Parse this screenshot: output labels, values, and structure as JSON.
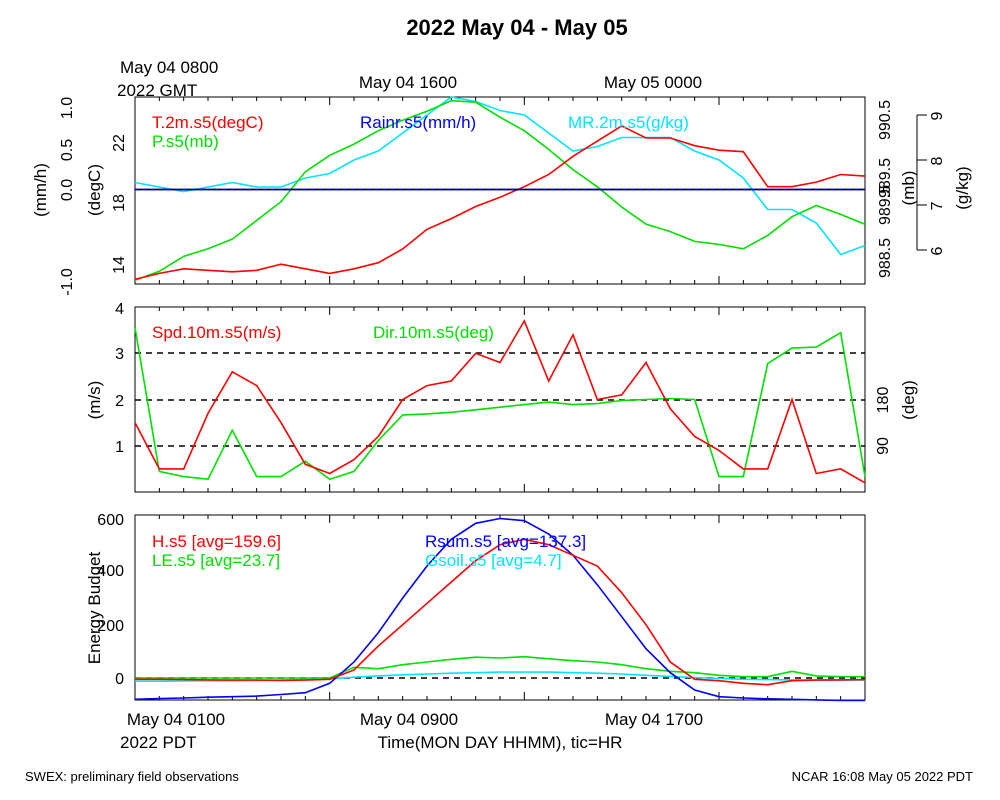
{
  "title": "2022 May 04 - May 05",
  "footer": {
    "left": "SWEX: preliminary field observations",
    "right": "NCAR 16:08 May 05 2022 PDT"
  },
  "top_time_labels": {
    "gmt_date": "May 04 0800",
    "gmt_year": "2022 GMT",
    "t2": "May 04 1600",
    "t3": "May 05 0000"
  },
  "bottom_time_labels": {
    "t1": "May 04 0100",
    "year": "2022 PDT",
    "t2": "May 04 0900",
    "t3": "May 04 1700",
    "xlabel": "Time(MON DAY HHMM), tic=HR"
  },
  "colors": {
    "red": "#ff0000",
    "green": "#00e000",
    "blue": "#0000ff",
    "cyan": "#00e5ff",
    "black": "#000000"
  },
  "chart_data": [
    {
      "type": "line",
      "panel": "top",
      "x_range_hours_pdt": [
        1,
        31
      ],
      "ylabel_left_outer": "(mm/h)",
      "ylabel_left_inner": "(degC)",
      "ylabel_right_inner": "(mb)",
      "ylabel_right_outer": "(g/kg)",
      "ticks_mmh": [
        "1.0",
        "0.5",
        "0.0",
        "-1.0"
      ],
      "ticks_degc": [
        "22",
        "18",
        "14"
      ],
      "ticks_mb": [
        "990.5",
        "989.5",
        "988.5",
        "989.5",
        "989.5"
      ],
      "ticks_mb_all": [
        "990.5",
        "990",
        "989.5",
        "989",
        "988.5"
      ],
      "ticks_gkg": [
        "9",
        "8",
        "7",
        "6"
      ],
      "ylim_degC": [
        13.2,
        25.5
      ],
      "legend": {
        "t": "T.2m.s5(degC)",
        "p": "P.s5(mb)",
        "rain": "Rainr.s5(mm/h)",
        "mr": "MR.2m.s5(g/kg)"
      },
      "series": [
        {
          "name": "T.2m.s5(degC)",
          "color": "#ff0000",
          "x": [
            1,
            2,
            3,
            4,
            5,
            6,
            7,
            8,
            9,
            10,
            11,
            12,
            13,
            14,
            15,
            16,
            17,
            18,
            19,
            20,
            21,
            22,
            23,
            24,
            25,
            26,
            27,
            28,
            29,
            30,
            31
          ],
          "y": [
            13.5,
            13.9,
            14.2,
            14.1,
            14.0,
            14.1,
            14.5,
            14.2,
            13.9,
            14.2,
            14.6,
            15.5,
            16.8,
            17.5,
            18.3,
            18.9,
            19.6,
            20.4,
            21.6,
            22.6,
            23.6,
            22.8,
            22.8,
            22.3,
            22.0,
            21.9,
            19.6,
            19.6,
            19.9,
            20.4,
            20.3
          ]
        },
        {
          "name": "P.s5(mb)",
          "color": "#00e000",
          "x": [
            1,
            2,
            3,
            4,
            5,
            6,
            7,
            8,
            9,
            10,
            11,
            12,
            13,
            14,
            15,
            16,
            17,
            18,
            19,
            20,
            21,
            22,
            23,
            24,
            25,
            26,
            27,
            28,
            29,
            30,
            31
          ],
          "y": [
            988.3,
            988.42,
            988.62,
            988.72,
            988.85,
            989.1,
            989.35,
            989.75,
            989.97,
            990.12,
            990.3,
            990.44,
            990.56,
            990.7,
            990.68,
            990.48,
            990.3,
            990.05,
            989.78,
            989.55,
            989.28,
            989.05,
            988.95,
            988.82,
            988.78,
            988.72,
            988.9,
            989.15,
            989.3,
            989.18,
            989.05
          ]
        },
        {
          "name": "Rainr.s5(mm/h)",
          "color": "#0000ff",
          "x": [
            1,
            31
          ],
          "y": [
            0.0,
            0.0
          ]
        },
        {
          "name": "MR.2m.s5(g/kg)",
          "color": "#00e5ff",
          "x": [
            1,
            2,
            3,
            4,
            5,
            6,
            7,
            8,
            9,
            10,
            11,
            12,
            13,
            14,
            15,
            16,
            17,
            18,
            19,
            20,
            21,
            22,
            23,
            24,
            25,
            26,
            27,
            28,
            29,
            30,
            31
          ],
          "y": [
            7.5,
            7.4,
            7.3,
            7.4,
            7.5,
            7.4,
            7.4,
            7.6,
            7.7,
            8.0,
            8.2,
            8.6,
            9.0,
            9.4,
            9.3,
            9.1,
            9.0,
            8.6,
            8.2,
            8.3,
            8.5,
            8.5,
            8.5,
            8.2,
            8.0,
            7.6,
            6.9,
            6.9,
            6.6,
            5.9,
            6.1
          ]
        }
      ]
    },
    {
      "type": "line",
      "panel": "middle",
      "x_range_hours_pdt": [
        1,
        31
      ],
      "ylabel_left": "(m/s)",
      "ylabel_right": "(deg)",
      "ticks_ms": [
        "4",
        "3",
        "2",
        "1"
      ],
      "ticks_deg": [
        "180",
        "90"
      ],
      "ylim_ms": [
        0,
        4
      ],
      "ylim_deg": [
        0,
        360
      ],
      "legend": {
        "spd": "Spd.10m.s5(m/s)",
        "dir": "Dir.10m.s5(deg)"
      },
      "series": [
        {
          "name": "Spd.10m.s5(m/s)",
          "color": "#ff0000",
          "x": [
            1,
            2,
            3,
            4,
            5,
            6,
            7,
            8,
            9,
            10,
            11,
            12,
            13,
            14,
            15,
            16,
            17,
            18,
            19,
            20,
            21,
            22,
            23,
            24,
            25,
            26,
            27,
            28,
            29,
            30,
            31
          ],
          "y": [
            1.5,
            0.5,
            0.5,
            1.7,
            2.6,
            2.3,
            1.5,
            0.6,
            0.4,
            0.7,
            1.2,
            2.0,
            2.3,
            2.4,
            3.0,
            2.8,
            3.7,
            2.4,
            3.4,
            2.0,
            2.1,
            2.8,
            1.8,
            1.2,
            0.9,
            0.5,
            0.5,
            2.0,
            0.4,
            0.5,
            0.2
          ]
        },
        {
          "name": "Dir.10m.s5(deg)",
          "color": "#00e000",
          "x": [
            1,
            2,
            3,
            4,
            5,
            6,
            7,
            8,
            9,
            10,
            11,
            12,
            13,
            14,
            15,
            16,
            17,
            18,
            19,
            20,
            21,
            22,
            23,
            24,
            25,
            26,
            27,
            28,
            29,
            30,
            31
          ],
          "y": [
            320,
            40,
            30,
            25,
            120,
            30,
            30,
            60,
            25,
            40,
            100,
            150,
            152,
            155,
            160,
            165,
            170,
            175,
            170,
            172,
            178,
            180,
            182,
            180,
            30,
            30,
            250,
            280,
            282,
            310,
            30
          ]
        }
      ]
    },
    {
      "type": "line",
      "panel": "bottom",
      "x_range_hours_pdt": [
        1,
        31
      ],
      "ylabel": "Energy Budget",
      "ticks": [
        "600",
        "400",
        "200",
        "0"
      ],
      "ylim": [
        -90,
        620
      ],
      "legend": {
        "h": "H.s5 [avg=159.6]",
        "le": "LE.s5 [avg=23.7]",
        "rsum": "Rsum.s5 [avg=137.3]",
        "gsoil": "Gsoil.s5 [avg=4.7]"
      },
      "series": [
        {
          "name": "H.s5 [avg=159.6]",
          "color": "#ff0000",
          "x": [
            1,
            2,
            3,
            4,
            5,
            6,
            7,
            8,
            9,
            10,
            11,
            12,
            13,
            14,
            15,
            16,
            17,
            18,
            19,
            20,
            21,
            22,
            23,
            24,
            25,
            26,
            27,
            28,
            29,
            30,
            31
          ],
          "y": [
            -5,
            -5,
            -6,
            -7,
            -8,
            -8,
            -9,
            -8,
            -5,
            30,
            120,
            200,
            280,
            360,
            440,
            500,
            520,
            500,
            460,
            420,
            320,
            200,
            60,
            -5,
            -10,
            -20,
            -25,
            -10,
            -8,
            -7,
            -6
          ]
        },
        {
          "name": "LE.s5 [avg=23.7]",
          "color": "#00e000",
          "x": [
            1,
            2,
            3,
            4,
            5,
            6,
            7,
            8,
            9,
            10,
            11,
            12,
            13,
            14,
            15,
            16,
            17,
            18,
            19,
            20,
            21,
            22,
            23,
            24,
            25,
            26,
            27,
            28,
            29,
            30,
            31
          ],
          "y": [
            0,
            0,
            0,
            0,
            0,
            0,
            0,
            0,
            0,
            40,
            35,
            50,
            60,
            70,
            78,
            75,
            80,
            72,
            65,
            60,
            50,
            35,
            25,
            20,
            10,
            5,
            5,
            25,
            8,
            5,
            5
          ]
        },
        {
          "name": "Rsum.s5 [avg=137.3]",
          "color": "#0000ff",
          "x": [
            1,
            2,
            3,
            4,
            5,
            6,
            7,
            8,
            9,
            10,
            11,
            12,
            13,
            14,
            15,
            16,
            17,
            18,
            19,
            20,
            21,
            22,
            23,
            24,
            25,
            26,
            27,
            28,
            29,
            30,
            31
          ],
          "y": [
            -80,
            -77,
            -75,
            -72,
            -70,
            -68,
            -62,
            -55,
            -20,
            60,
            170,
            300,
            420,
            520,
            580,
            598,
            590,
            540,
            460,
            350,
            230,
            110,
            20,
            -45,
            -70,
            -75,
            -78,
            -80,
            -82,
            -84,
            -84
          ]
        },
        {
          "name": "Gsoil.s5 [avg=4.7]",
          "color": "#00e5ff",
          "x": [
            1,
            2,
            3,
            4,
            5,
            6,
            7,
            8,
            9,
            10,
            11,
            12,
            13,
            14,
            15,
            16,
            17,
            18,
            19,
            20,
            21,
            22,
            23,
            24,
            25,
            26,
            27,
            28,
            29,
            30,
            31
          ],
          "y": [
            -12,
            -12,
            -11,
            -10,
            -10,
            -9,
            -8,
            -6,
            -3,
            3,
            8,
            12,
            15,
            18,
            20,
            22,
            22,
            22,
            20,
            18,
            15,
            10,
            6,
            2,
            -2,
            -5,
            -6,
            -7,
            -8,
            -8,
            -8
          ]
        }
      ]
    }
  ]
}
